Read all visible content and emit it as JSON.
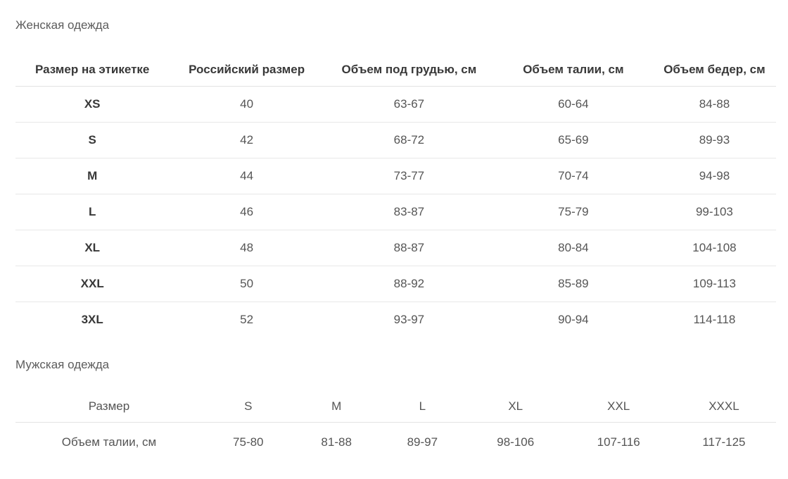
{
  "colors": {
    "background": "#ffffff",
    "section_title_text": "#5c5c5c",
    "header_text": "#383838",
    "cell_text": "#555555",
    "divider": "#e3e3e3"
  },
  "women_section": {
    "title": "Женская одежда",
    "table": {
      "headers": [
        "Размер на этикетке",
        "Российский размер",
        "Объем под грудью, см",
        "Объем талии, см",
        "Объем бедер, см"
      ],
      "rows": [
        {
          "label": "XS",
          "values": [
            "40",
            "63-67",
            "60-64",
            "84-88"
          ]
        },
        {
          "label": "S",
          "values": [
            "42",
            "68-72",
            "65-69",
            "89-93"
          ]
        },
        {
          "label": "M",
          "values": [
            "44",
            "73-77",
            "70-74",
            "94-98"
          ]
        },
        {
          "label": "L",
          "values": [
            "46",
            "83-87",
            "75-79",
            "99-103"
          ]
        },
        {
          "label": "XL",
          "values": [
            "48",
            "88-87",
            "80-84",
            "104-108"
          ]
        },
        {
          "label": "XXL",
          "values": [
            "50",
            "88-92",
            "85-89",
            "109-113"
          ]
        },
        {
          "label": "3XL",
          "values": [
            "52",
            "93-97",
            "90-94",
            "114-118"
          ]
        }
      ]
    }
  },
  "men_section": {
    "title": "Мужская одежда",
    "table": {
      "headers": [
        "Размер",
        "S",
        "M",
        "L",
        "XL",
        "XXL",
        "XXXL"
      ],
      "rows": [
        {
          "label": "Объем талии, см",
          "values": [
            "75-80",
            "81-88",
            "89-97",
            "98-106",
            "107-116",
            "117-125"
          ]
        }
      ]
    }
  }
}
